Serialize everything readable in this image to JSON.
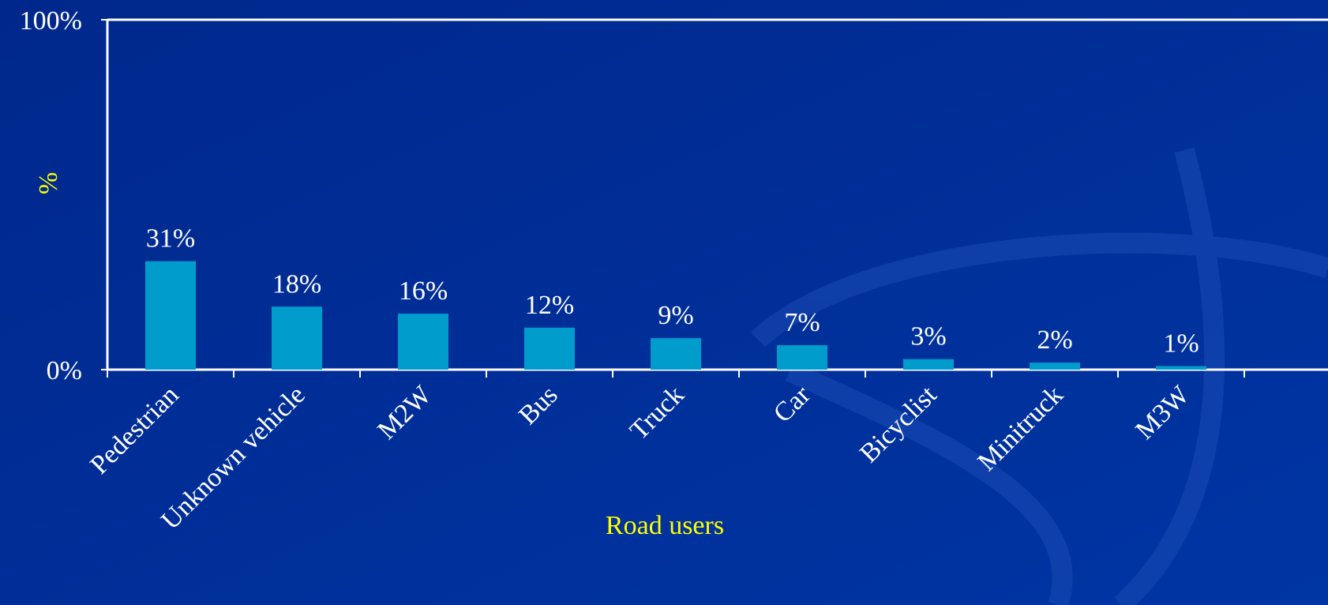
{
  "chart_data": {
    "type": "bar",
    "categories": [
      "Pedestrian",
      "Unknown vehicle",
      "M2W",
      "Bus",
      "Truck",
      "Car",
      "Bicyclist",
      "Minitruck",
      "M3W"
    ],
    "values": [
      31,
      18,
      16,
      12,
      9,
      7,
      3,
      2,
      1
    ],
    "value_labels": [
      "31%",
      "18%",
      "16%",
      "12%",
      "9%",
      "7%",
      "3%",
      "2%",
      "1%"
    ],
    "color": "#009ccc",
    "ylim": [
      0,
      100
    ],
    "yticks": [
      {
        "value": 0,
        "label": "0%"
      },
      {
        "value": 100,
        "label": "100%"
      }
    ],
    "ylabel": "%",
    "xlabel": "Road users"
  }
}
